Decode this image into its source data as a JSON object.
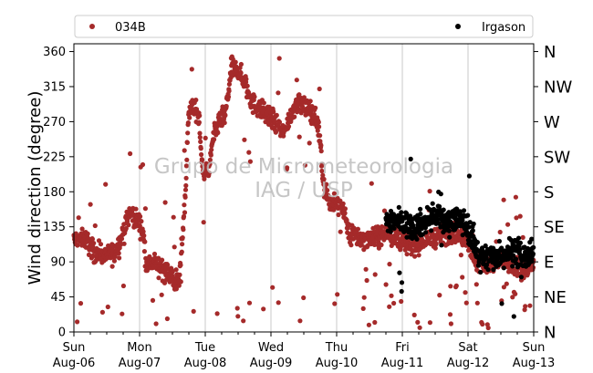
{
  "chart_data": {
    "type": "scatter",
    "ylabel": "Wind direction (degree)",
    "ylim": [
      0,
      370
    ],
    "yticks": [
      0,
      45,
      90,
      135,
      180,
      225,
      270,
      315,
      360
    ],
    "compass_labels": [
      "N",
      "NE",
      "E",
      "SE",
      "S",
      "SW",
      "W",
      "NW",
      "N"
    ],
    "x_range_days": [
      0,
      7
    ],
    "x_ticks": [
      {
        "day": "Sun",
        "date": "Aug-06"
      },
      {
        "day": "Mon",
        "date": "Aug-07"
      },
      {
        "day": "Tue",
        "date": "Aug-08"
      },
      {
        "day": "Wed",
        "date": "Aug-09"
      },
      {
        "day": "Thu",
        "date": "Aug-10"
      },
      {
        "day": "Fri",
        "date": "Aug-11"
      },
      {
        "day": "Sat",
        "date": "Aug-12"
      },
      {
        "day": "Sun",
        "date": "Aug-13"
      }
    ],
    "watermark": [
      "Grupo de Micrometeorologia",
      "IAG / USP"
    ],
    "grid": "vertical",
    "legend_position": "top",
    "series": [
      {
        "name": "034B",
        "color": "#a52a2a",
        "trend": [
          [
            0.0,
            118
          ],
          [
            0.15,
            122
          ],
          [
            0.3,
            105
          ],
          [
            0.45,
            100
          ],
          [
            0.6,
            100
          ],
          [
            0.75,
            125
          ],
          [
            0.85,
            155
          ],
          [
            1.0,
            140
          ],
          [
            1.05,
            130
          ],
          [
            1.1,
            90
          ],
          [
            1.3,
            85
          ],
          [
            1.5,
            70
          ],
          [
            1.6,
            60
          ],
          [
            1.7,
            180
          ],
          [
            1.75,
            290
          ],
          [
            1.9,
            280
          ],
          [
            1.95,
            215
          ],
          [
            2.05,
            200
          ],
          [
            2.1,
            240
          ],
          [
            2.2,
            270
          ],
          [
            2.3,
            275
          ],
          [
            2.4,
            340
          ],
          [
            2.5,
            335
          ],
          [
            2.6,
            320
          ],
          [
            2.7,
            295
          ],
          [
            2.85,
            285
          ],
          [
            3.0,
            275
          ],
          [
            3.1,
            265
          ],
          [
            3.2,
            255
          ],
          [
            3.3,
            280
          ],
          [
            3.4,
            295
          ],
          [
            3.5,
            290
          ],
          [
            3.6,
            285
          ],
          [
            3.7,
            270
          ],
          [
            3.75,
            250
          ],
          [
            3.8,
            190
          ],
          [
            3.9,
            165
          ],
          [
            4.1,
            160
          ],
          [
            4.2,
            125
          ],
          [
            4.4,
            118
          ],
          [
            4.6,
            122
          ],
          [
            4.8,
            128
          ],
          [
            5.0,
            115
          ],
          [
            5.2,
            110
          ],
          [
            5.4,
            118
          ],
          [
            5.6,
            125
          ],
          [
            5.8,
            128
          ],
          [
            6.0,
            118
          ],
          [
            6.1,
            92
          ],
          [
            6.3,
            85
          ],
          [
            6.5,
            90
          ],
          [
            6.6,
            88
          ],
          [
            6.8,
            82
          ],
          [
            7.0,
            85
          ]
        ]
      },
      {
        "name": "Irgason",
        "color": "#000000",
        "trend": [
          [
            4.75,
            140
          ],
          [
            4.85,
            145
          ],
          [
            5.0,
            140
          ],
          [
            5.2,
            135
          ],
          [
            5.4,
            145
          ],
          [
            5.5,
            150
          ],
          [
            5.65,
            140
          ],
          [
            5.8,
            148
          ],
          [
            5.95,
            140
          ],
          [
            6.05,
            125
          ],
          [
            6.15,
            100
          ],
          [
            6.3,
            95
          ],
          [
            6.5,
            100
          ],
          [
            6.7,
            105
          ],
          [
            6.85,
            95
          ],
          [
            7.0,
            100
          ]
        ]
      }
    ]
  }
}
